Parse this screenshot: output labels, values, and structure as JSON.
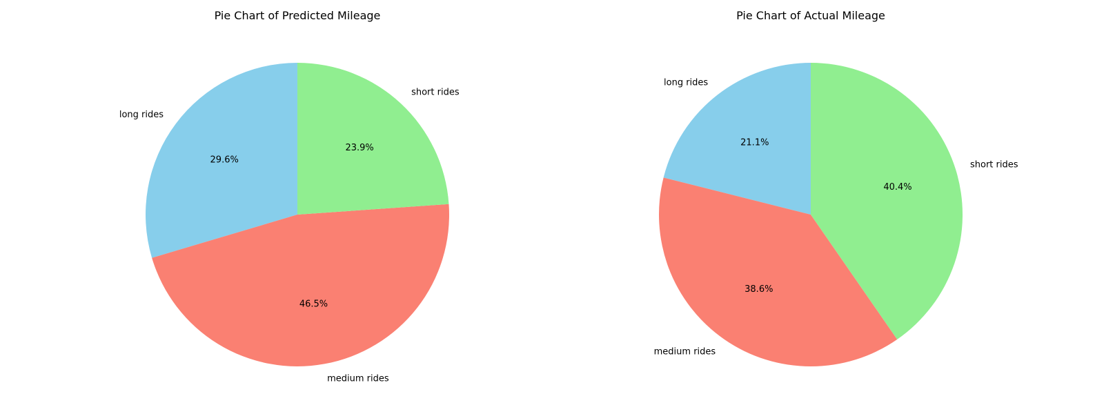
{
  "colors": {
    "long rides": "#87CEEB",
    "medium rides": "#FA8072",
    "short rides": "#90EE90"
  },
  "chart_data": [
    {
      "type": "pie",
      "title": "Pie Chart of Predicted Mileage",
      "start_angle_deg": 90,
      "direction": "counterclockwise",
      "slices": [
        {
          "label": "long rides",
          "value": 29.6,
          "pct_label": "29.6%"
        },
        {
          "label": "medium rides",
          "value": 46.5,
          "pct_label": "46.5%"
        },
        {
          "label": "short rides",
          "value": 23.9,
          "pct_label": "23.9%"
        }
      ]
    },
    {
      "type": "pie",
      "title": "Pie Chart of Actual Mileage",
      "start_angle_deg": 90,
      "direction": "counterclockwise",
      "slices": [
        {
          "label": "long rides",
          "value": 21.1,
          "pct_label": "21.1%"
        },
        {
          "label": "medium rides",
          "value": 38.6,
          "pct_label": "38.6%"
        },
        {
          "label": "short rides",
          "value": 40.4,
          "pct_label": "40.4%"
        }
      ]
    }
  ]
}
